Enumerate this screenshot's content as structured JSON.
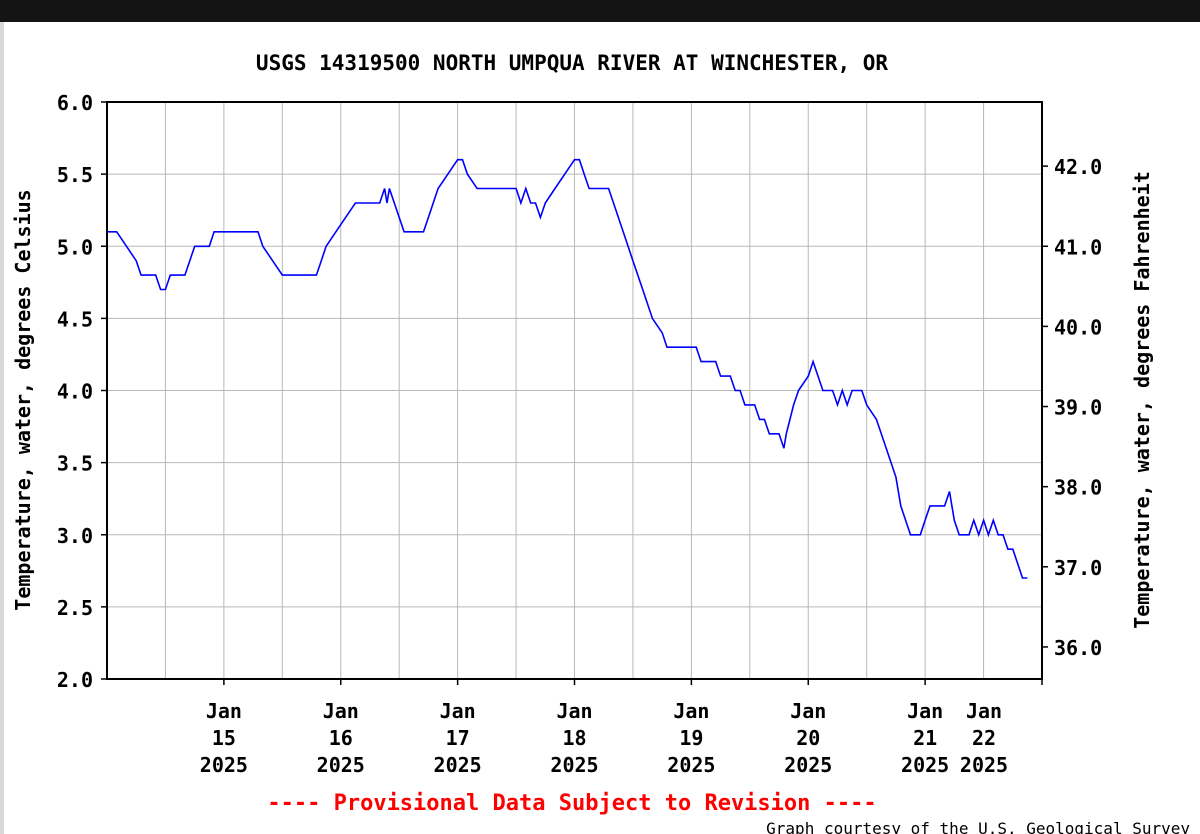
{
  "chart_data": {
    "type": "line",
    "title": "USGS 14319500 NORTH UMPQUA RIVER AT WINCHESTER, OR",
    "ylabel": "Temperature, water, degrees Celsius",
    "y2label": "Temperature, water, degrees Fahrenheit",
    "ylim": [
      2.0,
      6.0
    ],
    "y2lim": [
      35.6,
      42.8
    ],
    "yticks": [
      "2.0",
      "2.5",
      "3.0",
      "3.5",
      "4.0",
      "4.5",
      "5.0",
      "5.5",
      "6.0"
    ],
    "y2ticks": [
      "36.0",
      "37.0",
      "38.0",
      "39.0",
      "40.0",
      "41.0",
      "42.0"
    ],
    "xlim": [
      "2025-01-14T00:00",
      "2025-01-22T00:00"
    ],
    "xticks": [
      {
        "line1": "Jan",
        "line2": "15",
        "line3": "2025"
      },
      {
        "line1": "Jan",
        "line2": "16",
        "line3": "2025"
      },
      {
        "line1": "Jan",
        "line2": "17",
        "line3": "2025"
      },
      {
        "line1": "Jan",
        "line2": "18",
        "line3": "2025"
      },
      {
        "line1": "Jan",
        "line2": "19",
        "line3": "2025"
      },
      {
        "line1": "Jan",
        "line2": "20",
        "line3": "2025"
      },
      {
        "line1": "Jan",
        "line2": "21",
        "line3": "2025"
      },
      {
        "line1": "Jan",
        "line2": "22",
        "line3": "2025"
      }
    ],
    "grid": true,
    "line_color": "#0000ff",
    "series": [
      {
        "points": [
          [
            "2025-01-14T00:00",
            5.1
          ],
          [
            "2025-01-14T02:00",
            5.1
          ],
          [
            "2025-01-14T04:00",
            5.0
          ],
          [
            "2025-01-14T06:00",
            4.9
          ],
          [
            "2025-01-14T07:00",
            4.8
          ],
          [
            "2025-01-14T10:00",
            4.8
          ],
          [
            "2025-01-14T11:00",
            4.7
          ],
          [
            "2025-01-14T12:00",
            4.7
          ],
          [
            "2025-01-14T13:00",
            4.8
          ],
          [
            "2025-01-14T16:00",
            4.8
          ],
          [
            "2025-01-14T17:00",
            4.9
          ],
          [
            "2025-01-14T18:00",
            5.0
          ],
          [
            "2025-01-14T21:00",
            5.0
          ],
          [
            "2025-01-14T22:00",
            5.1
          ],
          [
            "2025-01-15T07:00",
            5.1
          ],
          [
            "2025-01-15T08:00",
            5.0
          ],
          [
            "2025-01-15T10:00",
            4.9
          ],
          [
            "2025-01-15T12:00",
            4.8
          ],
          [
            "2025-01-15T19:00",
            4.8
          ],
          [
            "2025-01-15T20:00",
            4.9
          ],
          [
            "2025-01-15T21:00",
            5.0
          ],
          [
            "2025-01-15T23:00",
            5.1
          ],
          [
            "2025-01-16T01:00",
            5.2
          ],
          [
            "2025-01-16T03:00",
            5.3
          ],
          [
            "2025-01-16T08:00",
            5.3
          ],
          [
            "2025-01-16T09:00",
            5.4
          ],
          [
            "2025-01-16T09:30",
            5.3
          ],
          [
            "2025-01-16T10:00",
            5.4
          ],
          [
            "2025-01-16T11:00",
            5.3
          ],
          [
            "2025-01-16T12:00",
            5.2
          ],
          [
            "2025-01-16T13:00",
            5.1
          ],
          [
            "2025-01-16T17:00",
            5.1
          ],
          [
            "2025-01-16T18:00",
            5.2
          ],
          [
            "2025-01-16T20:00",
            5.4
          ],
          [
            "2025-01-16T22:00",
            5.5
          ],
          [
            "2025-01-17T00:00",
            5.6
          ],
          [
            "2025-01-17T01:00",
            5.6
          ],
          [
            "2025-01-17T02:00",
            5.5
          ],
          [
            "2025-01-17T04:00",
            5.4
          ],
          [
            "2025-01-17T12:00",
            5.4
          ],
          [
            "2025-01-17T13:00",
            5.3
          ],
          [
            "2025-01-17T14:00",
            5.4
          ],
          [
            "2025-01-17T15:00",
            5.3
          ],
          [
            "2025-01-17T16:00",
            5.3
          ],
          [
            "2025-01-17T17:00",
            5.2
          ],
          [
            "2025-01-17T18:00",
            5.3
          ],
          [
            "2025-01-17T20:00",
            5.4
          ],
          [
            "2025-01-17T22:00",
            5.5
          ],
          [
            "2025-01-18T00:00",
            5.6
          ],
          [
            "2025-01-18T01:00",
            5.6
          ],
          [
            "2025-01-18T02:00",
            5.5
          ],
          [
            "2025-01-18T03:00",
            5.4
          ],
          [
            "2025-01-18T07:00",
            5.4
          ],
          [
            "2025-01-18T08:00",
            5.3
          ],
          [
            "2025-01-18T10:00",
            5.1
          ],
          [
            "2025-01-18T12:00",
            4.9
          ],
          [
            "2025-01-18T14:00",
            4.7
          ],
          [
            "2025-01-18T16:00",
            4.5
          ],
          [
            "2025-01-18T18:00",
            4.4
          ],
          [
            "2025-01-18T19:00",
            4.3
          ],
          [
            "2025-01-19T01:00",
            4.3
          ],
          [
            "2025-01-19T02:00",
            4.2
          ],
          [
            "2025-01-19T05:00",
            4.2
          ],
          [
            "2025-01-19T06:00",
            4.1
          ],
          [
            "2025-01-19T08:00",
            4.1
          ],
          [
            "2025-01-19T09:00",
            4.0
          ],
          [
            "2025-01-19T10:00",
            4.0
          ],
          [
            "2025-01-19T11:00",
            3.9
          ],
          [
            "2025-01-19T13:00",
            3.9
          ],
          [
            "2025-01-19T14:00",
            3.8
          ],
          [
            "2025-01-19T15:00",
            3.8
          ],
          [
            "2025-01-19T16:00",
            3.7
          ],
          [
            "2025-01-19T18:00",
            3.7
          ],
          [
            "2025-01-19T19:00",
            3.6
          ],
          [
            "2025-01-19T19:30",
            3.7
          ],
          [
            "2025-01-19T21:00",
            3.9
          ],
          [
            "2025-01-19T22:00",
            4.0
          ],
          [
            "2025-01-20T00:00",
            4.1
          ],
          [
            "2025-01-20T01:00",
            4.2
          ],
          [
            "2025-01-20T02:00",
            4.1
          ],
          [
            "2025-01-20T03:00",
            4.0
          ],
          [
            "2025-01-20T05:00",
            4.0
          ],
          [
            "2025-01-20T06:00",
            3.9
          ],
          [
            "2025-01-20T07:00",
            4.0
          ],
          [
            "2025-01-20T08:00",
            3.9
          ],
          [
            "2025-01-20T09:00",
            4.0
          ],
          [
            "2025-01-20T11:00",
            4.0
          ],
          [
            "2025-01-20T12:00",
            3.9
          ],
          [
            "2025-01-20T14:00",
            3.8
          ],
          [
            "2025-01-20T16:00",
            3.6
          ],
          [
            "2025-01-20T18:00",
            3.4
          ],
          [
            "2025-01-20T19:00",
            3.2
          ],
          [
            "2025-01-20T20:00",
            3.1
          ],
          [
            "2025-01-20T21:00",
            3.0
          ],
          [
            "2025-01-20T23:00",
            3.0
          ],
          [
            "2025-01-21T00:00",
            3.1
          ],
          [
            "2025-01-21T01:00",
            3.2
          ],
          [
            "2025-01-21T04:00",
            3.2
          ],
          [
            "2025-01-21T05:00",
            3.3
          ],
          [
            "2025-01-21T06:00",
            3.1
          ],
          [
            "2025-01-21T07:00",
            3.0
          ],
          [
            "2025-01-21T09:00",
            3.0
          ],
          [
            "2025-01-21T10:00",
            3.1
          ],
          [
            "2025-01-21T11:00",
            3.0
          ],
          [
            "2025-01-21T12:00",
            3.1
          ],
          [
            "2025-01-21T13:00",
            3.0
          ],
          [
            "2025-01-21T14:00",
            3.1
          ],
          [
            "2025-01-21T15:00",
            3.0
          ],
          [
            "2025-01-21T16:00",
            3.0
          ],
          [
            "2025-01-21T17:00",
            2.9
          ],
          [
            "2025-01-21T18:00",
            2.9
          ],
          [
            "2025-01-21T19:00",
            2.8
          ],
          [
            "2025-01-21T20:00",
            2.7
          ],
          [
            "2025-01-21T21:00",
            2.7
          ]
        ]
      }
    ]
  },
  "footer": {
    "provisional": "---- Provisional Data Subject to Revision ----",
    "credit": "Graph courtesy of the U.S. Geological Survey"
  }
}
